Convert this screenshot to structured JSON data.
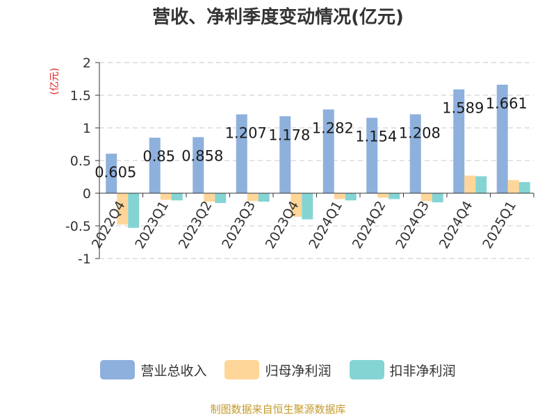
{
  "chart_data": {
    "type": "bar",
    "title": "营收、净利季度变动情况(亿元)",
    "ylabel": "(亿元)",
    "ylim": [
      -1,
      2
    ],
    "yticks": [
      "2",
      "1.5",
      "1",
      "0.5",
      "0",
      "-0.5",
      "-1"
    ],
    "ytick_values": [
      2,
      1.5,
      1,
      0.5,
      0,
      -0.5,
      -1
    ],
    "grid": true,
    "legend_position": "bottom",
    "categories": [
      "2022Q4",
      "2023Q1",
      "2023Q2",
      "2023Q3",
      "2023Q4",
      "2024Q1",
      "2024Q2",
      "2024Q3",
      "2024Q4",
      "2025Q1"
    ],
    "series": [
      {
        "name": "营业总收入",
        "color": "#8eb0dc",
        "values": [
          0.605,
          0.85,
          0.858,
          1.207,
          1.178,
          1.282,
          1.154,
          1.208,
          1.589,
          1.661
        ],
        "data_labels": [
          "0.605",
          "0.85",
          "0.858",
          "1.207",
          "1.178",
          "1.282",
          "1.154",
          "1.208",
          "1.589",
          "1.661"
        ]
      },
      {
        "name": "归母净利润",
        "color": "#ffd699",
        "values": [
          -0.48,
          -0.1,
          -0.13,
          -0.12,
          -0.36,
          -0.09,
          -0.07,
          -0.12,
          0.27,
          0.2
        ]
      },
      {
        "name": "扣非净利润",
        "color": "#85d4d4",
        "values": [
          -0.53,
          -0.11,
          -0.15,
          -0.13,
          -0.4,
          -0.11,
          -0.09,
          -0.14,
          0.26,
          0.17
        ]
      }
    ],
    "source": "制图数据来自恒生聚源数据库"
  }
}
